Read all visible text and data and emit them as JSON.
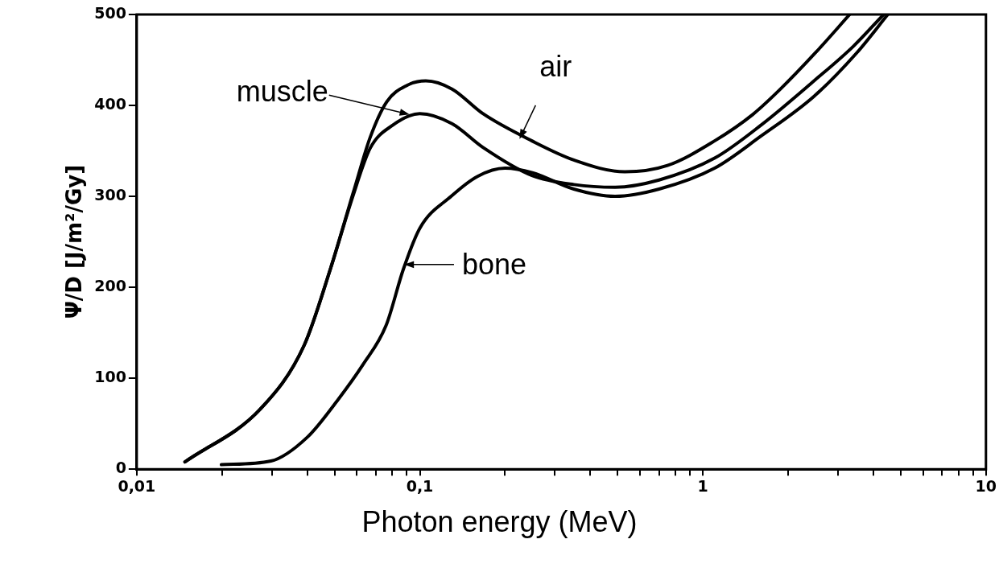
{
  "chart_data": {
    "type": "line",
    "xlabel": "Photon energy (MeV)",
    "ylabel": "Ψ/D [J/m²/Gy]",
    "log": "x",
    "grid": false,
    "legend": false,
    "marker": "none",
    "line_style": "solid",
    "xlim": [
      0.01,
      10
    ],
    "ylim": [
      0,
      500
    ],
    "xticks": [
      {
        "value": 0.01,
        "label": "0,01"
      },
      {
        "value": 0.02,
        "label": null
      },
      {
        "value": 0.03,
        "label": null
      },
      {
        "value": 0.04,
        "label": null
      },
      {
        "value": 0.05,
        "label": null
      },
      {
        "value": 0.06,
        "label": null
      },
      {
        "value": 0.07,
        "label": null
      },
      {
        "value": 0.08,
        "label": null
      },
      {
        "value": 0.09,
        "label": null
      },
      {
        "value": 0.1,
        "label": "0,1"
      },
      {
        "value": 0.2,
        "label": null
      },
      {
        "value": 0.3,
        "label": null
      },
      {
        "value": 0.4,
        "label": null
      },
      {
        "value": 0.5,
        "label": null
      },
      {
        "value": 0.6,
        "label": null
      },
      {
        "value": 0.7,
        "label": null
      },
      {
        "value": 0.8,
        "label": null
      },
      {
        "value": 0.9,
        "label": null
      },
      1,
      {
        "value": 2,
        "label": null
      },
      {
        "value": 3,
        "label": null
      },
      {
        "value": 4,
        "label": null
      },
      {
        "value": 5,
        "label": null
      },
      {
        "value": 6,
        "label": null
      },
      {
        "value": 7,
        "label": null
      },
      {
        "value": 8,
        "label": null
      },
      {
        "value": 9,
        "label": null
      },
      10
    ],
    "yticks": [
      0,
      100,
      200,
      300,
      400,
      500
    ],
    "series": [
      {
        "color": "#000000",
        "x": [
          0.0148,
          0.0275,
          0.039,
          0.0483,
          0.0583,
          0.0668,
          0.0764,
          0.09,
          0.105,
          0.13,
          0.167,
          0.249,
          0.35,
          0.53,
          0.75,
          1.1,
          1.5,
          1.88,
          2.5,
          3.3
        ],
        "values": [
          8,
          67,
          136,
          220,
          305,
          365,
          404,
          422,
          427,
          418,
          391,
          361,
          340,
          327,
          334,
          361,
          390,
          418,
          458,
          500
        ]
      },
      {
        "color": "#000000",
        "x": [
          0.0148,
          0.0275,
          0.039,
          0.0483,
          0.058,
          0.0668,
          0.08,
          0.1,
          0.13,
          0.167,
          0.249,
          0.35,
          0.49,
          0.7,
          1.1,
          1.6,
          2.47,
          3.4,
          4.35
        ],
        "values": [
          8,
          67,
          136,
          220,
          300,
          353,
          378,
          391,
          380,
          354,
          323,
          313,
          310,
          318,
          342,
          378,
          427,
          465,
          500
        ]
      },
      {
        "color": "#000000",
        "x": [
          0.0199,
          0.0298,
          0.04,
          0.051,
          0.063,
          0.076,
          0.0875,
          0.1,
          0.129,
          0.16,
          0.2,
          0.25,
          0.35,
          0.49,
          0.7,
          1.1,
          1.6,
          2.47,
          3.5,
          4.5
        ],
        "values": [
          5,
          9,
          35,
          75,
          115,
          158,
          220,
          265,
          300,
          322,
          331,
          326,
          308,
          300,
          308,
          331,
          366,
          410,
          458,
          500
        ]
      }
    ],
    "annotations": [
      {
        "text": "muscle",
        "x": 0.092,
        "y": 390
      },
      {
        "text": "air",
        "x": 0.225,
        "y": 363
      },
      {
        "text": "bone",
        "x": 0.088,
        "y": 225
      }
    ]
  }
}
